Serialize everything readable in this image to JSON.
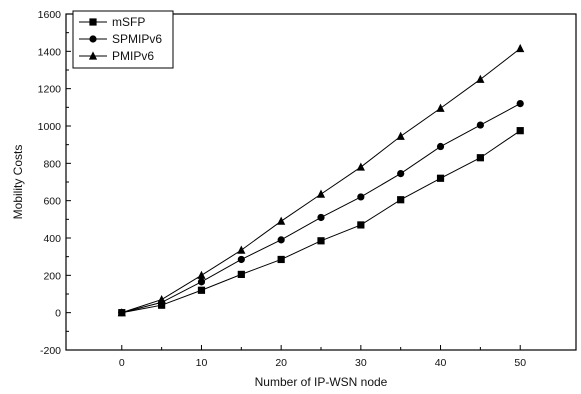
{
  "chart_data": {
    "type": "line",
    "xlabel": "Number of IP-WSN node",
    "ylabel": "Mobility Costs",
    "xlim": [
      -7,
      57
    ],
    "ylim": [
      -200,
      1600
    ],
    "xticks": [
      0,
      10,
      20,
      30,
      40,
      50
    ],
    "yticks": [
      -200,
      0,
      200,
      400,
      600,
      800,
      1000,
      1200,
      1400,
      1600
    ],
    "x": [
      0,
      5,
      10,
      15,
      20,
      25,
      30,
      35,
      40,
      45,
      50
    ],
    "grid": false,
    "legend_position": "top-left",
    "series": [
      {
        "name": "mSFP",
        "marker": "square",
        "values": [
          0,
          40,
          120,
          205,
          285,
          385,
          470,
          605,
          720,
          830,
          975
        ]
      },
      {
        "name": "SPMIPv6",
        "marker": "circle",
        "values": [
          0,
          55,
          165,
          285,
          390,
          510,
          620,
          745,
          890,
          1005,
          1120
        ]
      },
      {
        "name": "PMIPv6",
        "marker": "triangle",
        "values": [
          0,
          70,
          200,
          335,
          490,
          635,
          780,
          945,
          1095,
          1250,
          1415
        ]
      }
    ]
  }
}
